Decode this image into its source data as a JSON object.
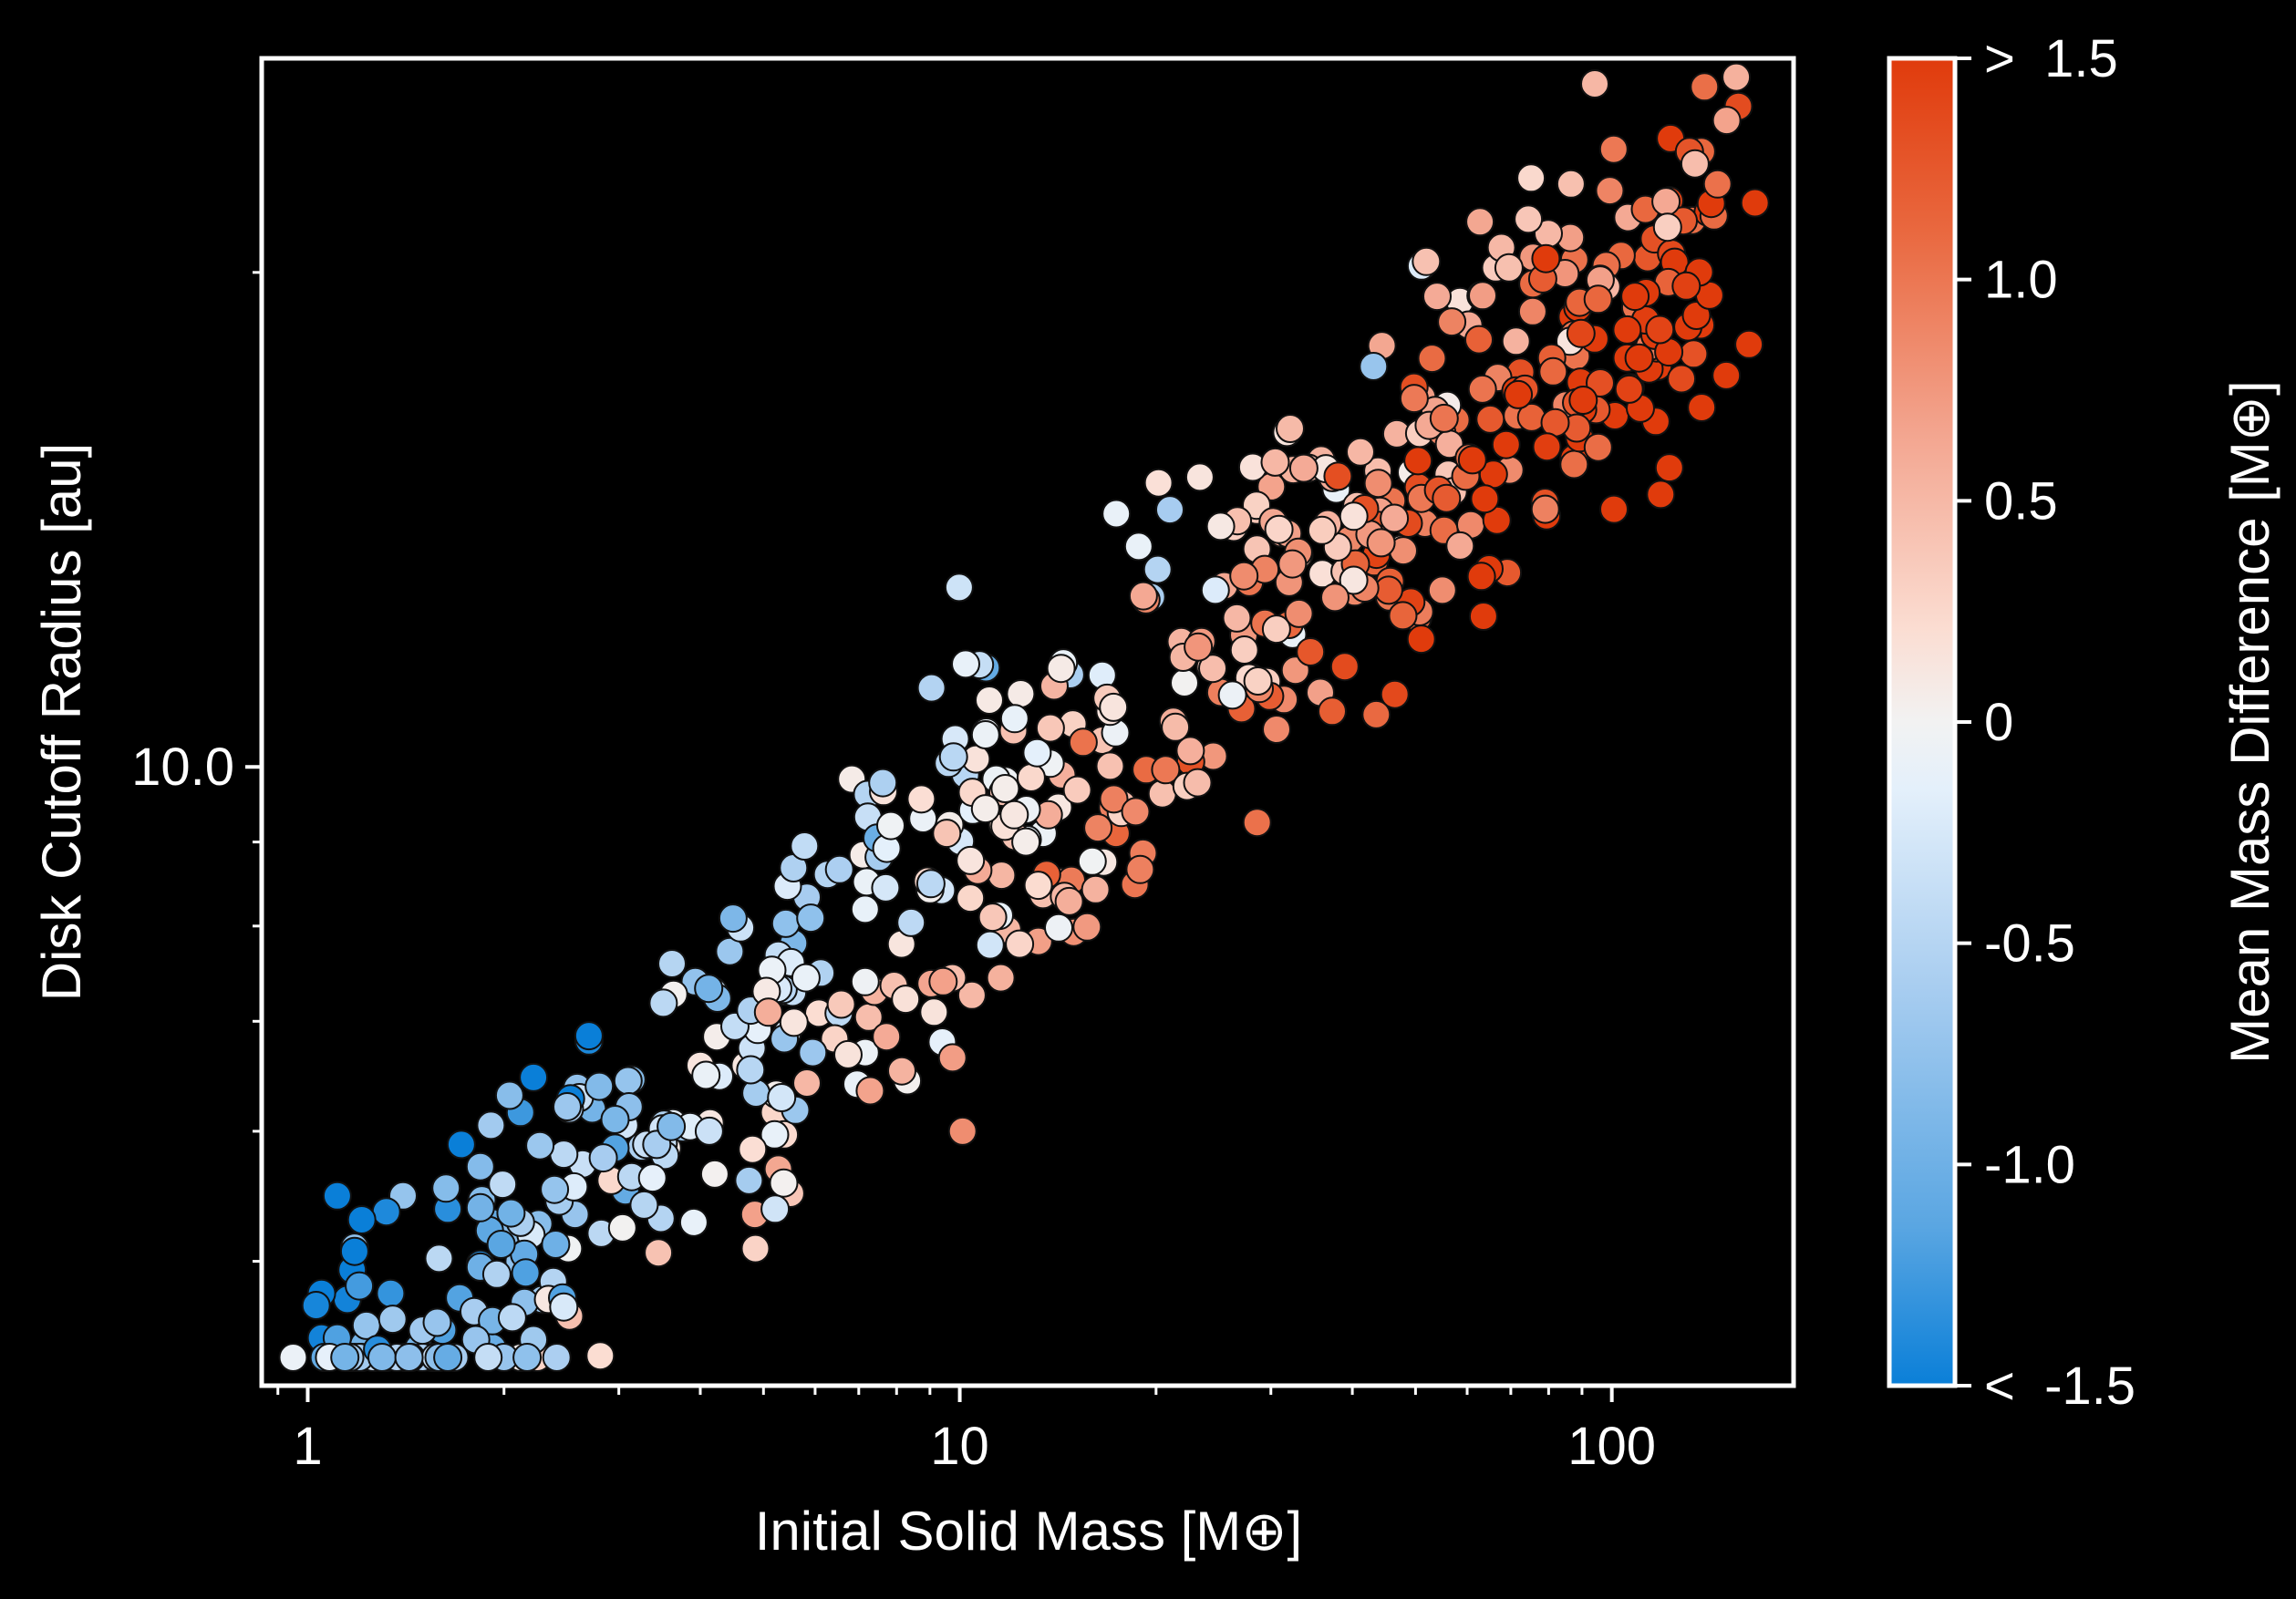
{
  "chart_data": {
    "type": "scatter",
    "xlabel": "Initial Solid Mass [M⊕]",
    "ylabel": "Disk Cutoff Radius [au]",
    "xscale": "log",
    "yscale": "log",
    "xlim": [
      0.85,
      190
    ],
    "ylim": [
      4.2,
      27
    ],
    "x_ticks": [
      {
        "value": 1,
        "label": "1"
      },
      {
        "value": 10,
        "label": "10"
      },
      {
        "value": 100,
        "label": "100"
      }
    ],
    "y_ticks": [
      {
        "value": 10,
        "label": "10.0"
      }
    ],
    "grid": false,
    "colorbar": {
      "label": "Mean Mass Difference [M⊕]",
      "vmin": -1.5,
      "vmax": 1.5,
      "ticks": [
        {
          "value": 1.5,
          "label": ">  1.5"
        },
        {
          "value": 1.0,
          "label": "1.0"
        },
        {
          "value": 0.5,
          "label": "0.5"
        },
        {
          "value": 0,
          "label": "0"
        },
        {
          "value": -0.5,
          "label": "-0.5"
        },
        {
          "value": -1.0,
          "label": "-1.0"
        },
        {
          "value": -1.5,
          "label": "<  -1.5"
        }
      ],
      "colors": [
        "#0a7fd8",
        "#5aa6e2",
        "#a8cdf0",
        "#e4f0fb",
        "#f2f2f2",
        "#fbddd2",
        "#f3a48e",
        "#e9683f",
        "#e03b0c"
      ]
    },
    "points": []
  },
  "colors": {
    "background": "#000000",
    "axes": "#ffffff",
    "marker_edge": "#111111"
  }
}
